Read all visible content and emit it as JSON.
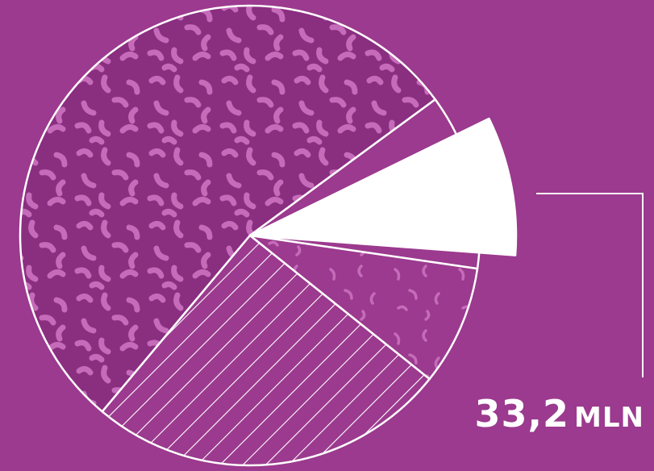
{
  "colors": {
    "background": "#9b3a8e",
    "texture_fill": "#8a2e80",
    "texture_marks": "#c56bb9",
    "highlight": "#ffffff",
    "outline": "#ffffff"
  },
  "chart_data": {
    "type": "pie",
    "slices": [
      {
        "pattern": "squiggle-dense",
        "value": 0.53,
        "highlight": false
      },
      {
        "pattern": "solid",
        "value": 0.028,
        "highlight": false
      },
      {
        "pattern": "solid",
        "value": 0.083,
        "highlight": true,
        "exploded": true
      },
      {
        "pattern": "solid",
        "value": 0.011,
        "highlight": false
      },
      {
        "pattern": "squiggle-sparse",
        "value": 0.083,
        "highlight": false
      },
      {
        "pattern": "diagonal-stripes",
        "value": 0.25,
        "highlight": false
      }
    ],
    "callout": {
      "value": "33,2",
      "unit": "MLN"
    }
  }
}
